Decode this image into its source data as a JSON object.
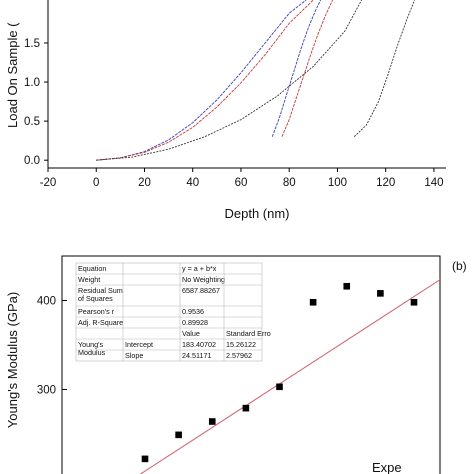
{
  "chart_data": [
    {
      "type": "line",
      "panel_label": "",
      "xlabel": "Depth (nm)",
      "ylabel": "Load On Sample (mN)",
      "ylabel_visible": "Load On Sample (",
      "xlim": [
        -20,
        145
      ],
      "ylim": [
        -0.1,
        2.05
      ],
      "x_ticks": [
        -20,
        0,
        20,
        40,
        60,
        80,
        100,
        120,
        140
      ],
      "y_ticks": [
        0.0,
        0.5,
        1.0,
        1.5
      ],
      "x_tick_labels": [
        "-20",
        "0",
        "20",
        "40",
        "60",
        "80",
        "100",
        "120",
        "140"
      ],
      "y_tick_labels": [
        "0.0",
        "0.5",
        "1.0",
        "1.5"
      ],
      "grid": false,
      "series": [
        {
          "color": "#3b3fb8",
          "x": [
            0,
            10,
            20,
            30,
            40,
            50,
            60,
            70,
            80,
            87
          ],
          "y": [
            0,
            0.03,
            0.11,
            0.26,
            0.48,
            0.77,
            1.12,
            1.5,
            1.88,
            2.05
          ]
        },
        {
          "color": "#c43a3a",
          "x": [
            0,
            10,
            20,
            30,
            40,
            50,
            60,
            70,
            80,
            90
          ],
          "y": [
            0,
            0.03,
            0.1,
            0.23,
            0.42,
            0.68,
            0.99,
            1.35,
            1.75,
            2.05
          ]
        },
        {
          "color": "#c43a3a",
          "x": [
            77,
            80,
            83,
            86,
            89,
            92,
            95,
            98
          ],
          "y": [
            0.3,
            0.52,
            0.8,
            1.08,
            1.36,
            1.62,
            1.85,
            2.05
          ]
        },
        {
          "color": "#3b3fb8",
          "x": [
            73,
            76,
            79,
            82,
            85,
            88,
            91,
            93
          ],
          "y": [
            0.3,
            0.55,
            0.85,
            1.14,
            1.44,
            1.7,
            1.92,
            2.05
          ]
        },
        {
          "color": "#333333",
          "x": [
            0,
            15,
            30,
            45,
            60,
            75,
            90,
            103,
            110
          ],
          "y": [
            0,
            0.04,
            0.14,
            0.3,
            0.52,
            0.82,
            1.2,
            1.65,
            2.05
          ]
        },
        {
          "color": "#333333",
          "x": [
            107,
            112,
            117,
            121,
            125,
            129,
            132
          ],
          "y": [
            0.3,
            0.45,
            0.75,
            1.1,
            1.48,
            1.82,
            2.05
          ]
        }
      ]
    },
    {
      "type": "scatter",
      "panel_label": "(b)",
      "ylabel": "Young's Modulus (GPa)",
      "ylim": [
        205,
        450
      ],
      "xlim": [
        0,
        10
      ],
      "y_ticks": [
        300,
        400
      ],
      "y_tick_labels": [
        "300",
        "400"
      ],
      "grid": false,
      "points": {
        "x": [
          1,
          2,
          3,
          4,
          5,
          6,
          7,
          8,
          9,
          10
        ],
        "y": [
          222,
          249,
          264,
          279,
          303,
          398,
          416,
          408,
          398,
          null
        ]
      },
      "fit_line": {
        "color": "#d06070",
        "x": [
          0.5,
          9.8
        ],
        "y": [
          196,
          424
        ]
      },
      "legend_visible_text": "Expe",
      "fit_table": {
        "rows": [
          [
            "Equation",
            "",
            "y = a + b*x",
            ""
          ],
          [
            "Weight",
            "",
            "No Weighting",
            ""
          ],
          [
            "Residual Sum of Squares",
            "",
            "6587.88267",
            ""
          ],
          [
            "Pearson's r",
            "",
            "0.9536",
            ""
          ],
          [
            "Adj. R-Square",
            "",
            "0.89928",
            ""
          ],
          [
            "",
            "",
            "Value",
            "Standard Erro"
          ],
          [
            "Young's Modulus",
            "Intercept",
            "183.40702",
            "15.26122"
          ],
          [
            "",
            "Slope",
            "24.51171",
            "2.57962"
          ]
        ]
      }
    }
  ]
}
